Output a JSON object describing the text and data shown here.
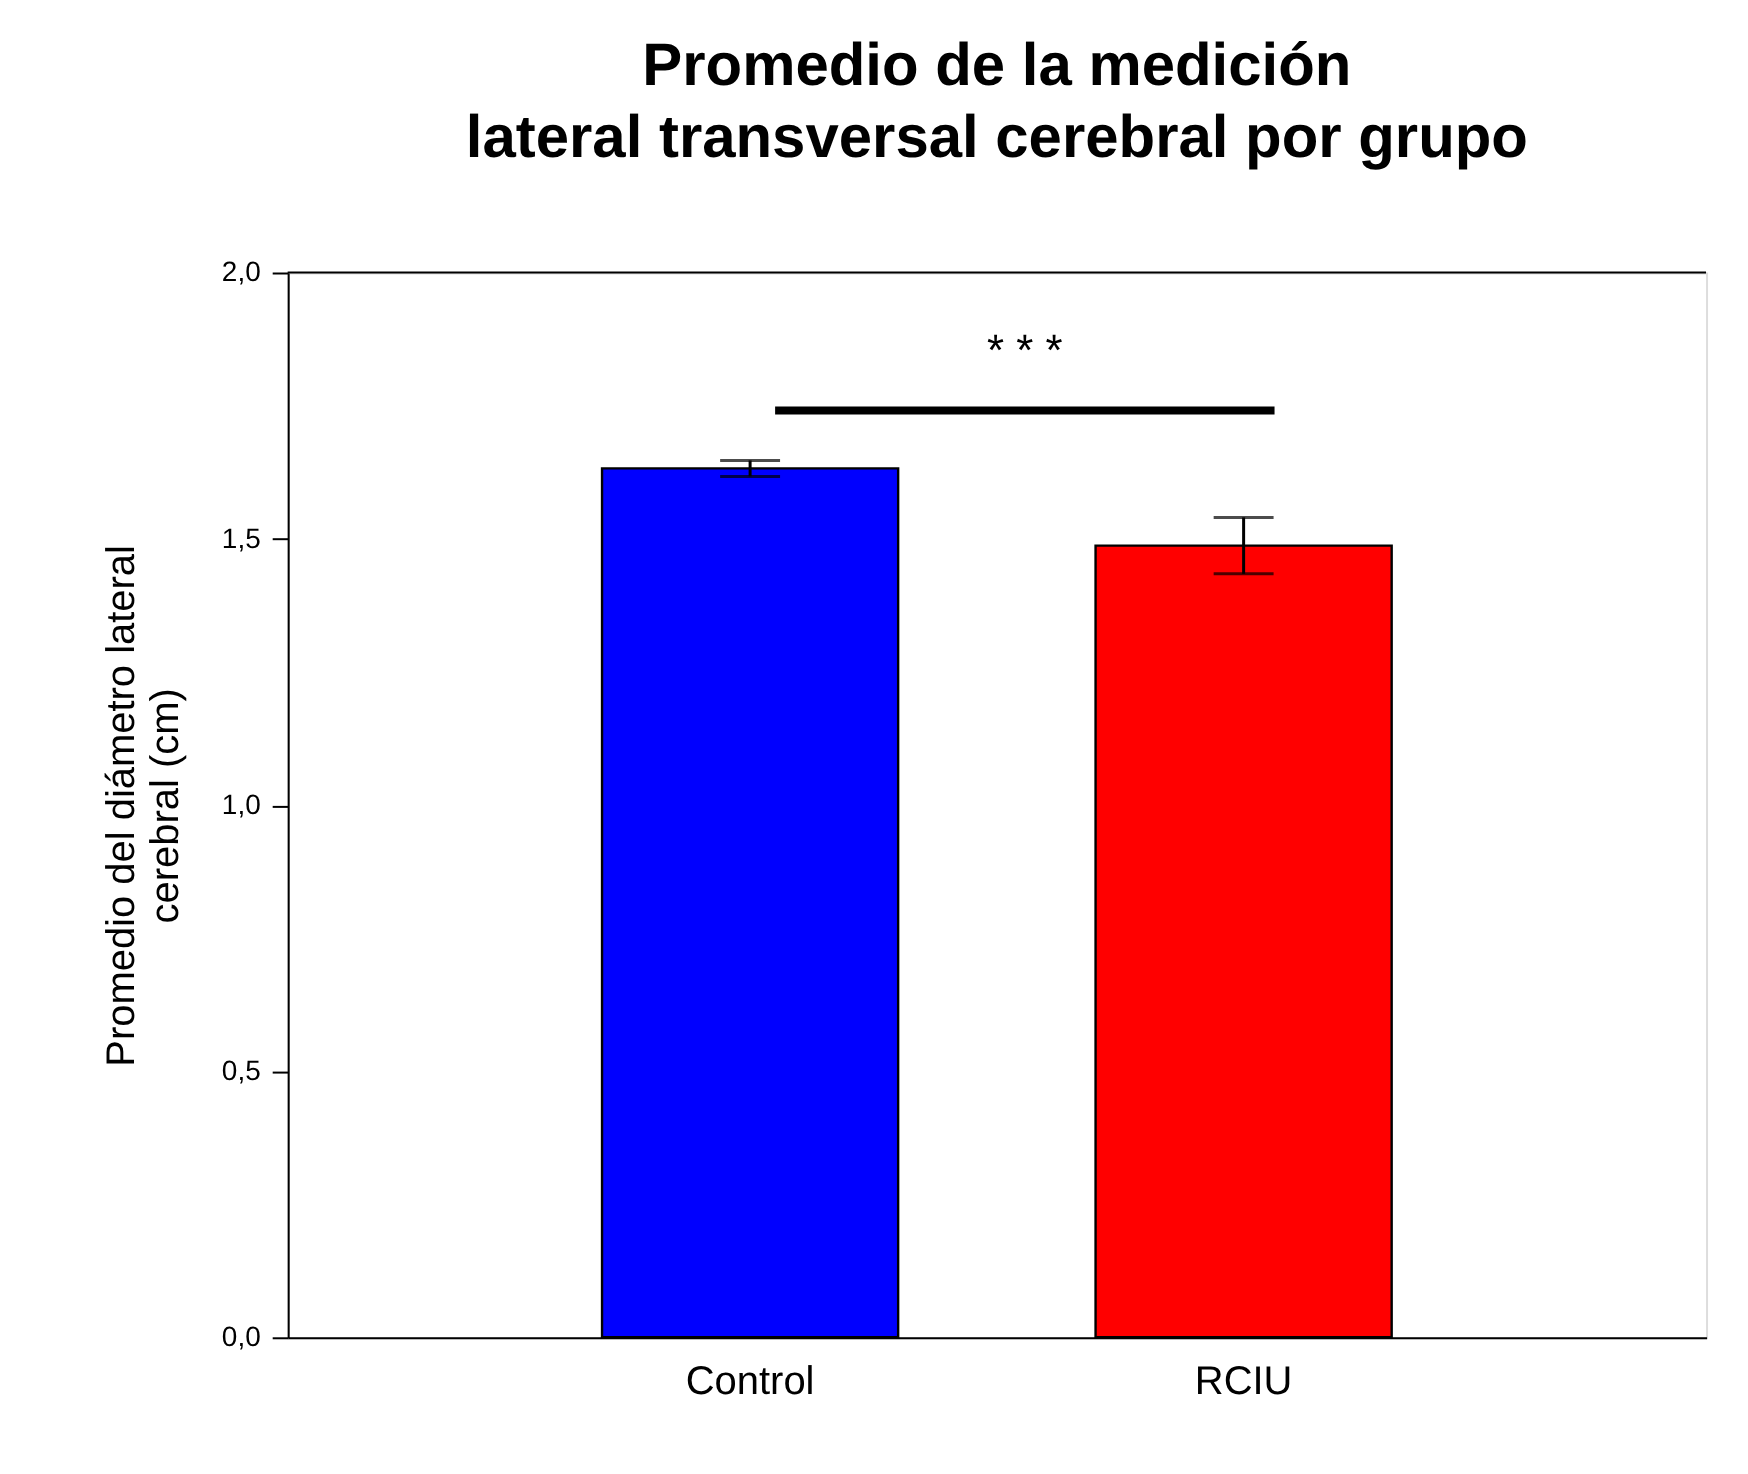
{
  "chart_data": {
    "type": "bar",
    "title": "Promedio de la medición\nlateral transversal cerebral por grupo",
    "ylabel": "Promedio del diámetro lateral\ncerebral (cm)",
    "categories": [
      "Control",
      "RCIU"
    ],
    "values": [
      1.632,
      1.487
    ],
    "colors": [
      "#0000ff",
      "#ff0000"
    ],
    "errors": [
      0.015,
      0.053
    ],
    "ylim": [
      0,
      2.0
    ],
    "yticks": [
      {
        "value": 0,
        "label": "0,0"
      },
      {
        "value": 0.5,
        "label": "0,5"
      },
      {
        "value": 1.0,
        "label": "1,0"
      },
      {
        "value": 1.5,
        "label": "1,5"
      },
      {
        "value": 2.0,
        "label": "2,0"
      }
    ],
    "annotations": [
      "* * *"
    ],
    "grid": false
  }
}
